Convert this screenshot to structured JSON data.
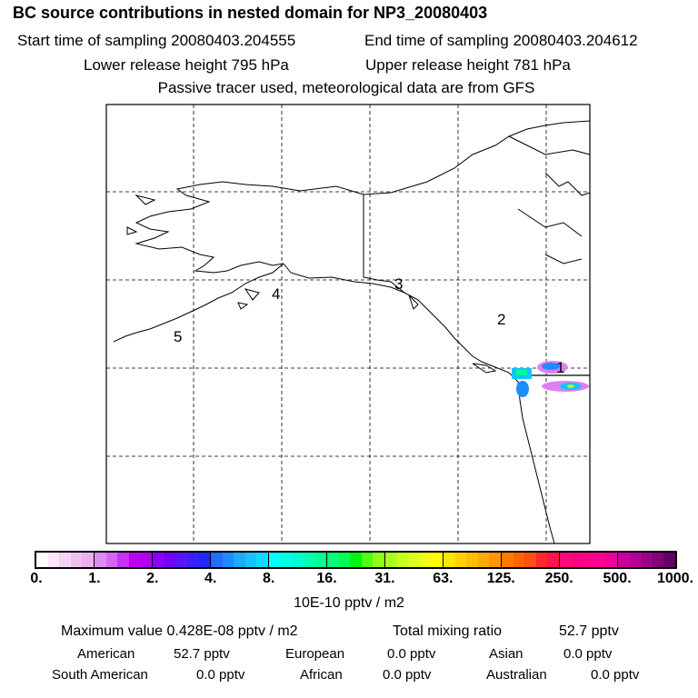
{
  "header": {
    "title": "BC  source contributions in nested domain for NP3_20080403",
    "start": "Start time of sampling 20080403.204555",
    "end": "End time of sampling 20080403.204612",
    "lower": "Lower release height  795 hPa",
    "upper": "Upper release height  781 hPa",
    "note": "Passive tracer used, meteorological data are from GFS"
  },
  "map": {
    "labels": [
      "1",
      "2",
      "3",
      "4",
      "5"
    ]
  },
  "colorbar": {
    "ticks": [
      "0.",
      "1.",
      "2.",
      "4.",
      "8.",
      "16.",
      "31.",
      "63.",
      "125.",
      "250.",
      "500.",
      "1000."
    ],
    "unit": "10E-10 pptv / m2",
    "colors": [
      [
        "#ffffff",
        "#fbe6fb",
        "#f6d2f6",
        "#f0bff2",
        "#ecb0f0"
      ],
      [
        "#de8cf0",
        "#d466f2",
        "#c833f5",
        "#bc00f5",
        "#b000f0"
      ],
      [
        "#8a00ff",
        "#7000ff",
        "#5a14ff",
        "#3c1eff",
        "#1e28ff"
      ],
      [
        "#1e6eff",
        "#1e8cff",
        "#1eaaff",
        "#14c3ff",
        "#0adcff"
      ],
      [
        "#00ffff",
        "#00ffe6",
        "#00ffd2",
        "#00ffb4",
        "#00ff96"
      ],
      [
        "#00ff78",
        "#00ff50",
        "#00f514",
        "#50ff14",
        "#8cff14"
      ],
      [
        "#aaff1e",
        "#c8ff1e",
        "#dcff1e",
        "#f0ff14",
        "#ffff00"
      ],
      [
        "#ffe600",
        "#ffd200",
        "#ffbe00",
        "#ffaa00",
        "#ff9600"
      ],
      [
        "#ff7800",
        "#ff6400",
        "#ff5014",
        "#ff2828",
        "#ff1450"
      ],
      [
        "#ff0a78",
        "#ff0082",
        "#ff008c",
        "#ff0096",
        "#f0009a"
      ],
      [
        "#c8009a",
        "#b40096",
        "#9b008c",
        "#820078",
        "#640064"
      ]
    ]
  },
  "stats": {
    "max_label": "Maximum value  0.428E-08 pptv / m2",
    "total_label": "Total mixing ratio",
    "total_value": "52.7 pptv",
    "regions": [
      {
        "name": "American",
        "value": "52.7 pptv"
      },
      {
        "name": "European",
        "value": "0.0 pptv"
      },
      {
        "name": "Asian",
        "value": "0.0 pptv"
      },
      {
        "name": "South American",
        "value": "0.0 pptv"
      },
      {
        "name": "African",
        "value": "0.0 pptv"
      },
      {
        "name": "Australian",
        "value": "0.0 pptv"
      }
    ]
  }
}
